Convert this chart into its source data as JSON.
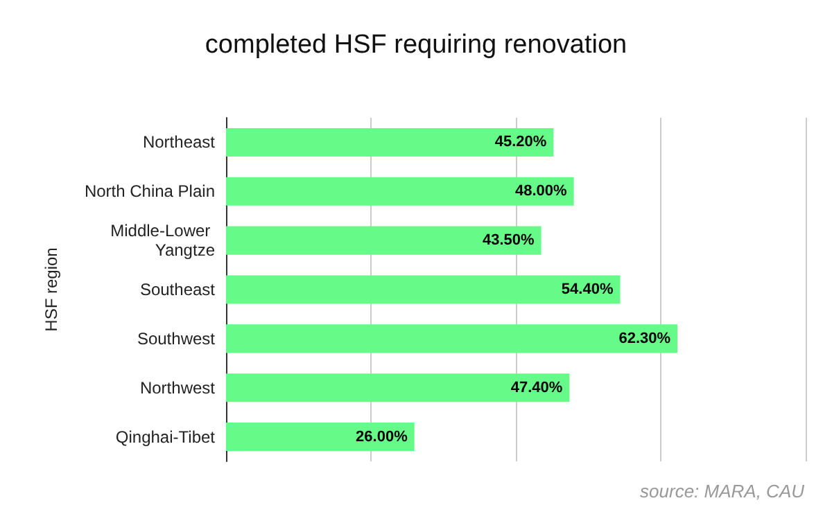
{
  "chart_data": {
    "type": "bar",
    "orientation": "horizontal",
    "title": "completed HSF requiring renovation",
    "ylabel": "HSF region",
    "categories": [
      "Northeast",
      "North China Plain",
      "Middle-Lower Yangtze",
      "Southeast",
      "Southwest",
      "Northwest",
      "Qinghai-Tibet"
    ],
    "values": [
      45.2,
      48.0,
      43.5,
      54.4,
      62.3,
      47.4,
      26.0
    ],
    "value_labels": [
      "45.20%",
      "48.00%",
      "43.50%",
      "54.40%",
      "62.30%",
      "47.40%",
      "26.00%"
    ],
    "color": "#66fb88",
    "xlim": [
      0,
      80
    ],
    "xticks": [
      {
        "value": 0,
        "label": null
      },
      {
        "value": 20,
        "label": null
      },
      {
        "value": 40,
        "label": null
      },
      {
        "value": 60,
        "label": null
      },
      {
        "value": 80,
        "label": null
      }
    ],
    "tick_labels": "y",
    "grid": "x",
    "annotations": [
      "source: MARA, CAU"
    ]
  }
}
